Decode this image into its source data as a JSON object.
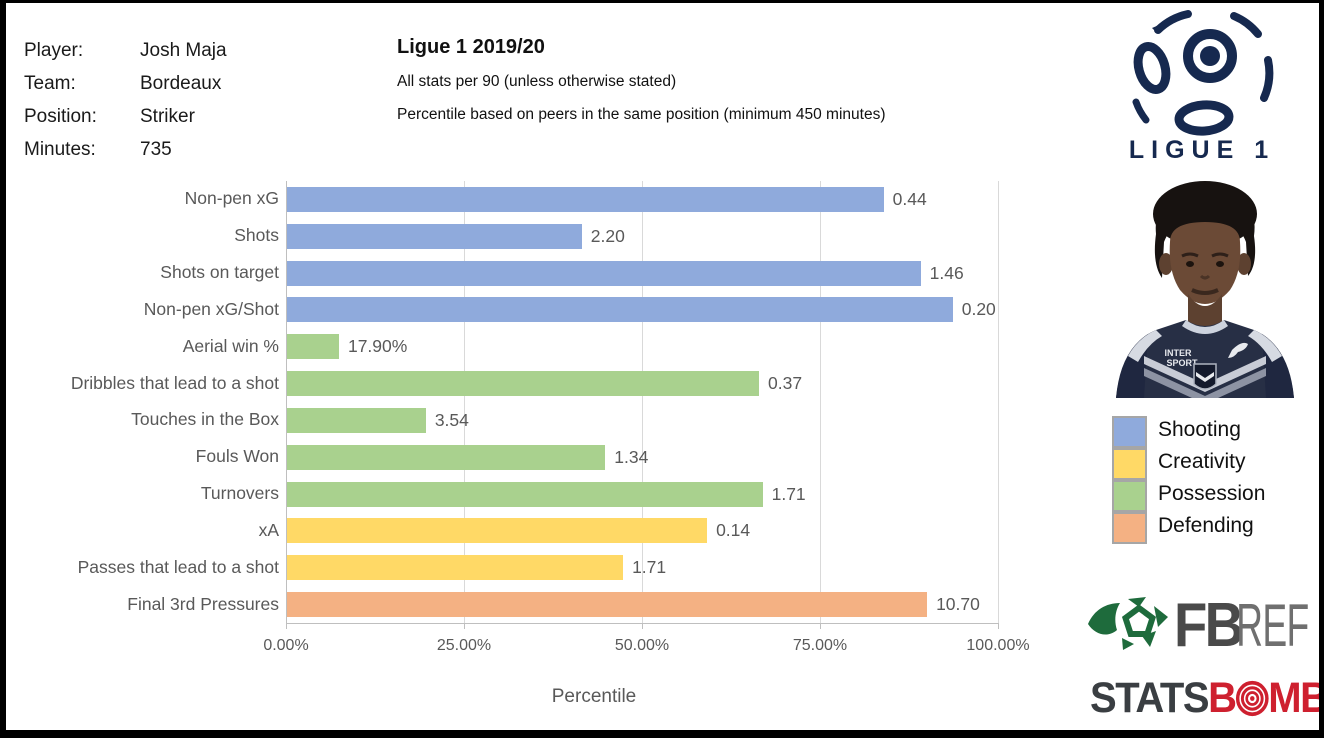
{
  "header": {
    "fields": [
      {
        "label": "Player:",
        "value": "Josh Maja"
      },
      {
        "label": "Team:",
        "value": "Bordeaux"
      },
      {
        "label": "Position:",
        "value": "Striker"
      },
      {
        "label": "Minutes:",
        "value": "735"
      }
    ],
    "title": "Ligue 1 2019/20",
    "subtitle1": "All stats per 90 (unless otherwise stated)",
    "subtitle2": "Percentile based on peers in the same position (minimum 450 minutes)"
  },
  "chart_data": {
    "type": "bar",
    "orientation": "horizontal",
    "xlabel": "Percentile",
    "xlim": [
      0,
      100
    ],
    "x_ticks": [
      "0.00%",
      "25.00%",
      "50.00%",
      "75.00%",
      "100.00%"
    ],
    "grid": "vertical-major",
    "categories": [
      "Non-pen xG",
      "Shots",
      "Shots on target",
      "Non-pen xG/Shot",
      "Aerial win %",
      "Dribbles that lead to a shot",
      "Touches in the Box",
      "Fouls Won",
      "Turnovers",
      "xA",
      "Passes that lead to a shot",
      "Final 3rd Pressures"
    ],
    "percentile_values": [
      83.8,
      41.4,
      89.0,
      93.5,
      7.3,
      66.3,
      19.5,
      44.7,
      66.8,
      59.0,
      47.2,
      89.9
    ],
    "bar_labels": [
      "0.44",
      "2.20",
      "1.46",
      "0.20",
      "17.90%",
      "0.37",
      "3.54",
      "1.34",
      "1.71",
      "0.14",
      "1.71",
      "10.70"
    ],
    "groups": [
      "Shooting",
      "Shooting",
      "Shooting",
      "Shooting",
      "Possession",
      "Possession",
      "Possession",
      "Possession",
      "Possession",
      "Creativity",
      "Creativity",
      "Defending"
    ],
    "group_colors": {
      "Shooting": "#8FAADC",
      "Creativity": "#FFD966",
      "Possession": "#A9D18E",
      "Defending": "#F4B183"
    },
    "legend": [
      "Shooting",
      "Creativity",
      "Possession",
      "Defending"
    ],
    "legend_position": "right"
  },
  "colors": {
    "gridline": "#D9D9D9",
    "axis": "#BFBFBF",
    "chart_text": "#595959",
    "ligue1_navy": "#16294F",
    "fbref_green": "#1E6B3C",
    "statsbomb_red": "#CE202F"
  },
  "logos": {
    "ligue1_text": "LIGUE 1",
    "fbref": {
      "fb": "FB",
      "ref": "REF"
    },
    "statsbomb": {
      "stats": "STATS",
      "b": "B",
      "mb": "MB"
    }
  },
  "photo": {
    "sponsor_line1": "INTER",
    "sponsor_line2": "SPORT"
  }
}
